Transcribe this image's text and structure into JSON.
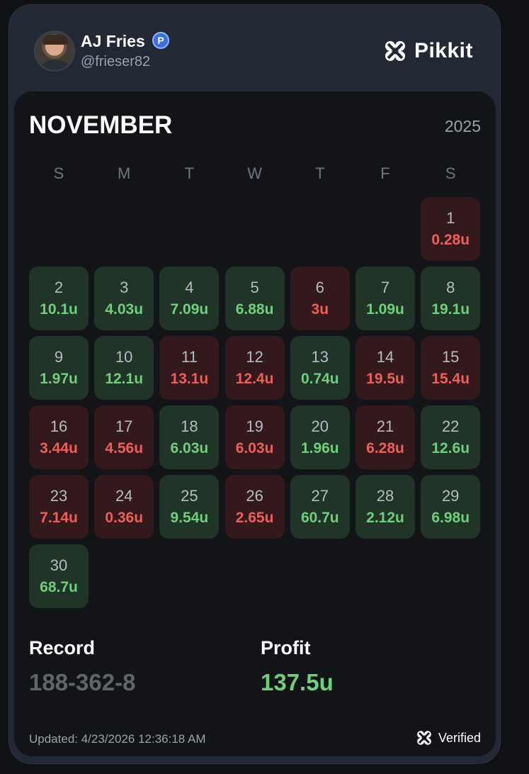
{
  "profile": {
    "name": "AJ Fries",
    "badge": "P",
    "handle": "@frieser82"
  },
  "brand": {
    "name": "Pikkit",
    "icon": "clover-icon"
  },
  "calendar": {
    "month": "NOVEMBER",
    "year": "2025",
    "weekdays": [
      "S",
      "M",
      "T",
      "W",
      "T",
      "F",
      "S"
    ],
    "start_weekday": 6,
    "days": [
      {
        "day": "1",
        "value": "0.28u",
        "result": "loss"
      },
      {
        "day": "2",
        "value": "10.1u",
        "result": "win"
      },
      {
        "day": "3",
        "value": "4.03u",
        "result": "win"
      },
      {
        "day": "4",
        "value": "7.09u",
        "result": "win"
      },
      {
        "day": "5",
        "value": "6.88u",
        "result": "win"
      },
      {
        "day": "6",
        "value": "3u",
        "result": "loss"
      },
      {
        "day": "7",
        "value": "1.09u",
        "result": "win"
      },
      {
        "day": "8",
        "value": "19.1u",
        "result": "win"
      },
      {
        "day": "9",
        "value": "1.97u",
        "result": "win"
      },
      {
        "day": "10",
        "value": "12.1u",
        "result": "win"
      },
      {
        "day": "11",
        "value": "13.1u",
        "result": "loss"
      },
      {
        "day": "12",
        "value": "12.4u",
        "result": "loss"
      },
      {
        "day": "13",
        "value": "0.74u",
        "result": "win"
      },
      {
        "day": "14",
        "value": "19.5u",
        "result": "loss"
      },
      {
        "day": "15",
        "value": "15.4u",
        "result": "loss"
      },
      {
        "day": "16",
        "value": "3.44u",
        "result": "loss"
      },
      {
        "day": "17",
        "value": "4.56u",
        "result": "loss"
      },
      {
        "day": "18",
        "value": "6.03u",
        "result": "win"
      },
      {
        "day": "19",
        "value": "6.03u",
        "result": "loss"
      },
      {
        "day": "20",
        "value": "1.96u",
        "result": "win"
      },
      {
        "day": "21",
        "value": "6.28u",
        "result": "loss"
      },
      {
        "day": "22",
        "value": "12.6u",
        "result": "win"
      },
      {
        "day": "23",
        "value": "7.14u",
        "result": "loss"
      },
      {
        "day": "24",
        "value": "0.36u",
        "result": "loss"
      },
      {
        "day": "25",
        "value": "9.54u",
        "result": "win"
      },
      {
        "day": "26",
        "value": "2.65u",
        "result": "loss"
      },
      {
        "day": "27",
        "value": "60.7u",
        "result": "win"
      },
      {
        "day": "28",
        "value": "2.12u",
        "result": "win"
      },
      {
        "day": "29",
        "value": "6.98u",
        "result": "win"
      },
      {
        "day": "30",
        "value": "68.7u",
        "result": "win"
      }
    ]
  },
  "stats": {
    "record_label": "Record",
    "record_value": "188-362-8",
    "profit_label": "Profit",
    "profit_value": "137.5u"
  },
  "footer": {
    "updated": "Updated: 4/23/2026 12:36:18 AM",
    "verified": "Verified"
  },
  "colors": {
    "win_bg": "#203427",
    "loss_bg": "#33191b",
    "win_text": "#6fd07c",
    "loss_text": "#ef5f57"
  }
}
